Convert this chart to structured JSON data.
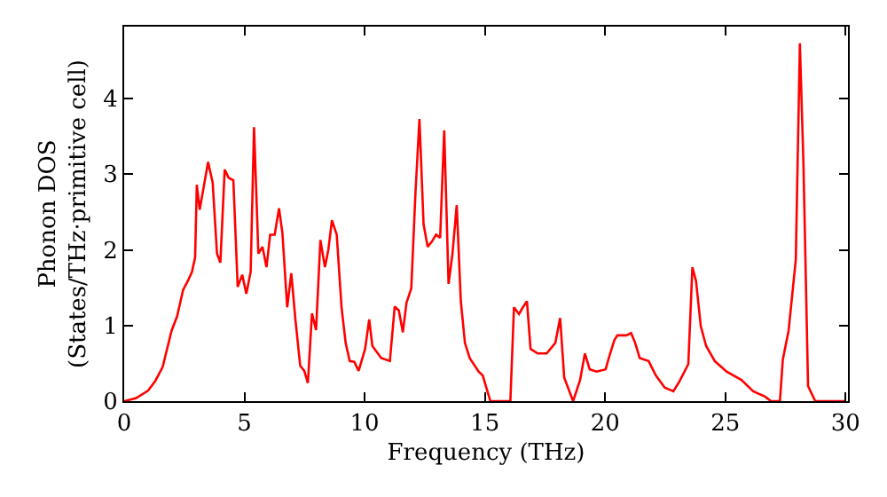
{
  "chart_data": {
    "type": "line",
    "xlabel": "Frequency (THz)",
    "ylabel": "Phonon DOS\n(States/THz·primitive cell)",
    "xlim": [
      0,
      30.1
    ],
    "ylim": [
      0,
      4.95
    ],
    "xticks": [
      0,
      5,
      10,
      15,
      20,
      25,
      30
    ],
    "yticks": [
      0,
      1,
      2,
      3,
      4
    ],
    "marker": "none",
    "line_style": "solid",
    "x": [
      0,
      0.5,
      1.0,
      1.3,
      1.6,
      1.97,
      2.2,
      2.45,
      2.65,
      2.82,
      2.95,
      3.02,
      3.14,
      3.49,
      3.68,
      3.86,
      4.0,
      4.18,
      4.35,
      4.54,
      4.72,
      4.91,
      5.08,
      5.26,
      5.4,
      5.58,
      5.75,
      5.92,
      6.07,
      6.26,
      6.44,
      6.58,
      6.78,
      6.95,
      7.12,
      7.32,
      7.49,
      7.64,
      7.81,
      7.98,
      8.16,
      8.35,
      8.49,
      8.64,
      8.84,
      9.04,
      9.21,
      9.38,
      9.57,
      9.75,
      10.02,
      10.19,
      10.32,
      10.69,
      11.05,
      11.25,
      11.42,
      11.59,
      11.74,
      11.94,
      12.11,
      12.28,
      12.45,
      12.62,
      12.8,
      12.97,
      13.14,
      13.31,
      13.49,
      13.65,
      13.83,
      14.0,
      14.17,
      14.37,
      14.74,
      14.91,
      15.23,
      16.06,
      16.21,
      16.42,
      16.58,
      16.75,
      16.9,
      17.2,
      17.57,
      17.93,
      18.13,
      18.3,
      18.67,
      18.96,
      19.16,
      19.36,
      19.65,
      20.02,
      20.19,
      20.39,
      20.51,
      20.88,
      21.08,
      21.25,
      21.44,
      21.81,
      22.11,
      22.48,
      22.84,
      23.09,
      23.46,
      23.63,
      23.78,
      23.98,
      24.2,
      24.56,
      25.05,
      25.67,
      26.16,
      26.65,
      26.9,
      27.27,
      27.39,
      27.63,
      27.93,
      28.1,
      28.25,
      28.44,
      28.74,
      30.0
    ],
    "series": [
      {
        "color": "#ff0000",
        "values": [
          0,
          0.04,
          0.14,
          0.27,
          0.45,
          0.93,
          1.12,
          1.47,
          1.59,
          1.71,
          1.9,
          2.86,
          2.53,
          3.16,
          2.89,
          1.95,
          1.83,
          3.06,
          2.95,
          2.92,
          1.51,
          1.67,
          1.42,
          1.71,
          3.62,
          1.95,
          2.04,
          1.77,
          2.2,
          2.2,
          2.55,
          2.22,
          1.24,
          1.69,
          1.08,
          0.47,
          0.4,
          0.24,
          1.16,
          0.94,
          2.13,
          1.77,
          2.0,
          2.39,
          2.2,
          1.24,
          0.77,
          0.53,
          0.52,
          0.4,
          0.69,
          1.08,
          0.73,
          0.57,
          0.53,
          1.25,
          1.2,
          0.91,
          1.3,
          1.49,
          2.73,
          3.73,
          2.34,
          2.04,
          2.11,
          2.2,
          2.16,
          3.58,
          1.55,
          1.94,
          2.59,
          1.32,
          0.77,
          0.57,
          0.39,
          0.34,
          0,
          0,
          1.24,
          1.15,
          1.24,
          1.32,
          0.69,
          0.63,
          0.63,
          0.77,
          1.1,
          0.31,
          0,
          0.28,
          0.63,
          0.42,
          0.39,
          0.42,
          0.61,
          0.81,
          0.87,
          0.87,
          0.9,
          0.77,
          0.57,
          0.53,
          0.34,
          0.18,
          0.13,
          0.26,
          0.49,
          1.77,
          1.59,
          0.99,
          0.73,
          0.53,
          0.39,
          0.28,
          0.13,
          0.06,
          0,
          0,
          0.55,
          0.93,
          1.87,
          4.73,
          3.12,
          0.2,
          0,
          0
        ]
      }
    ]
  }
}
